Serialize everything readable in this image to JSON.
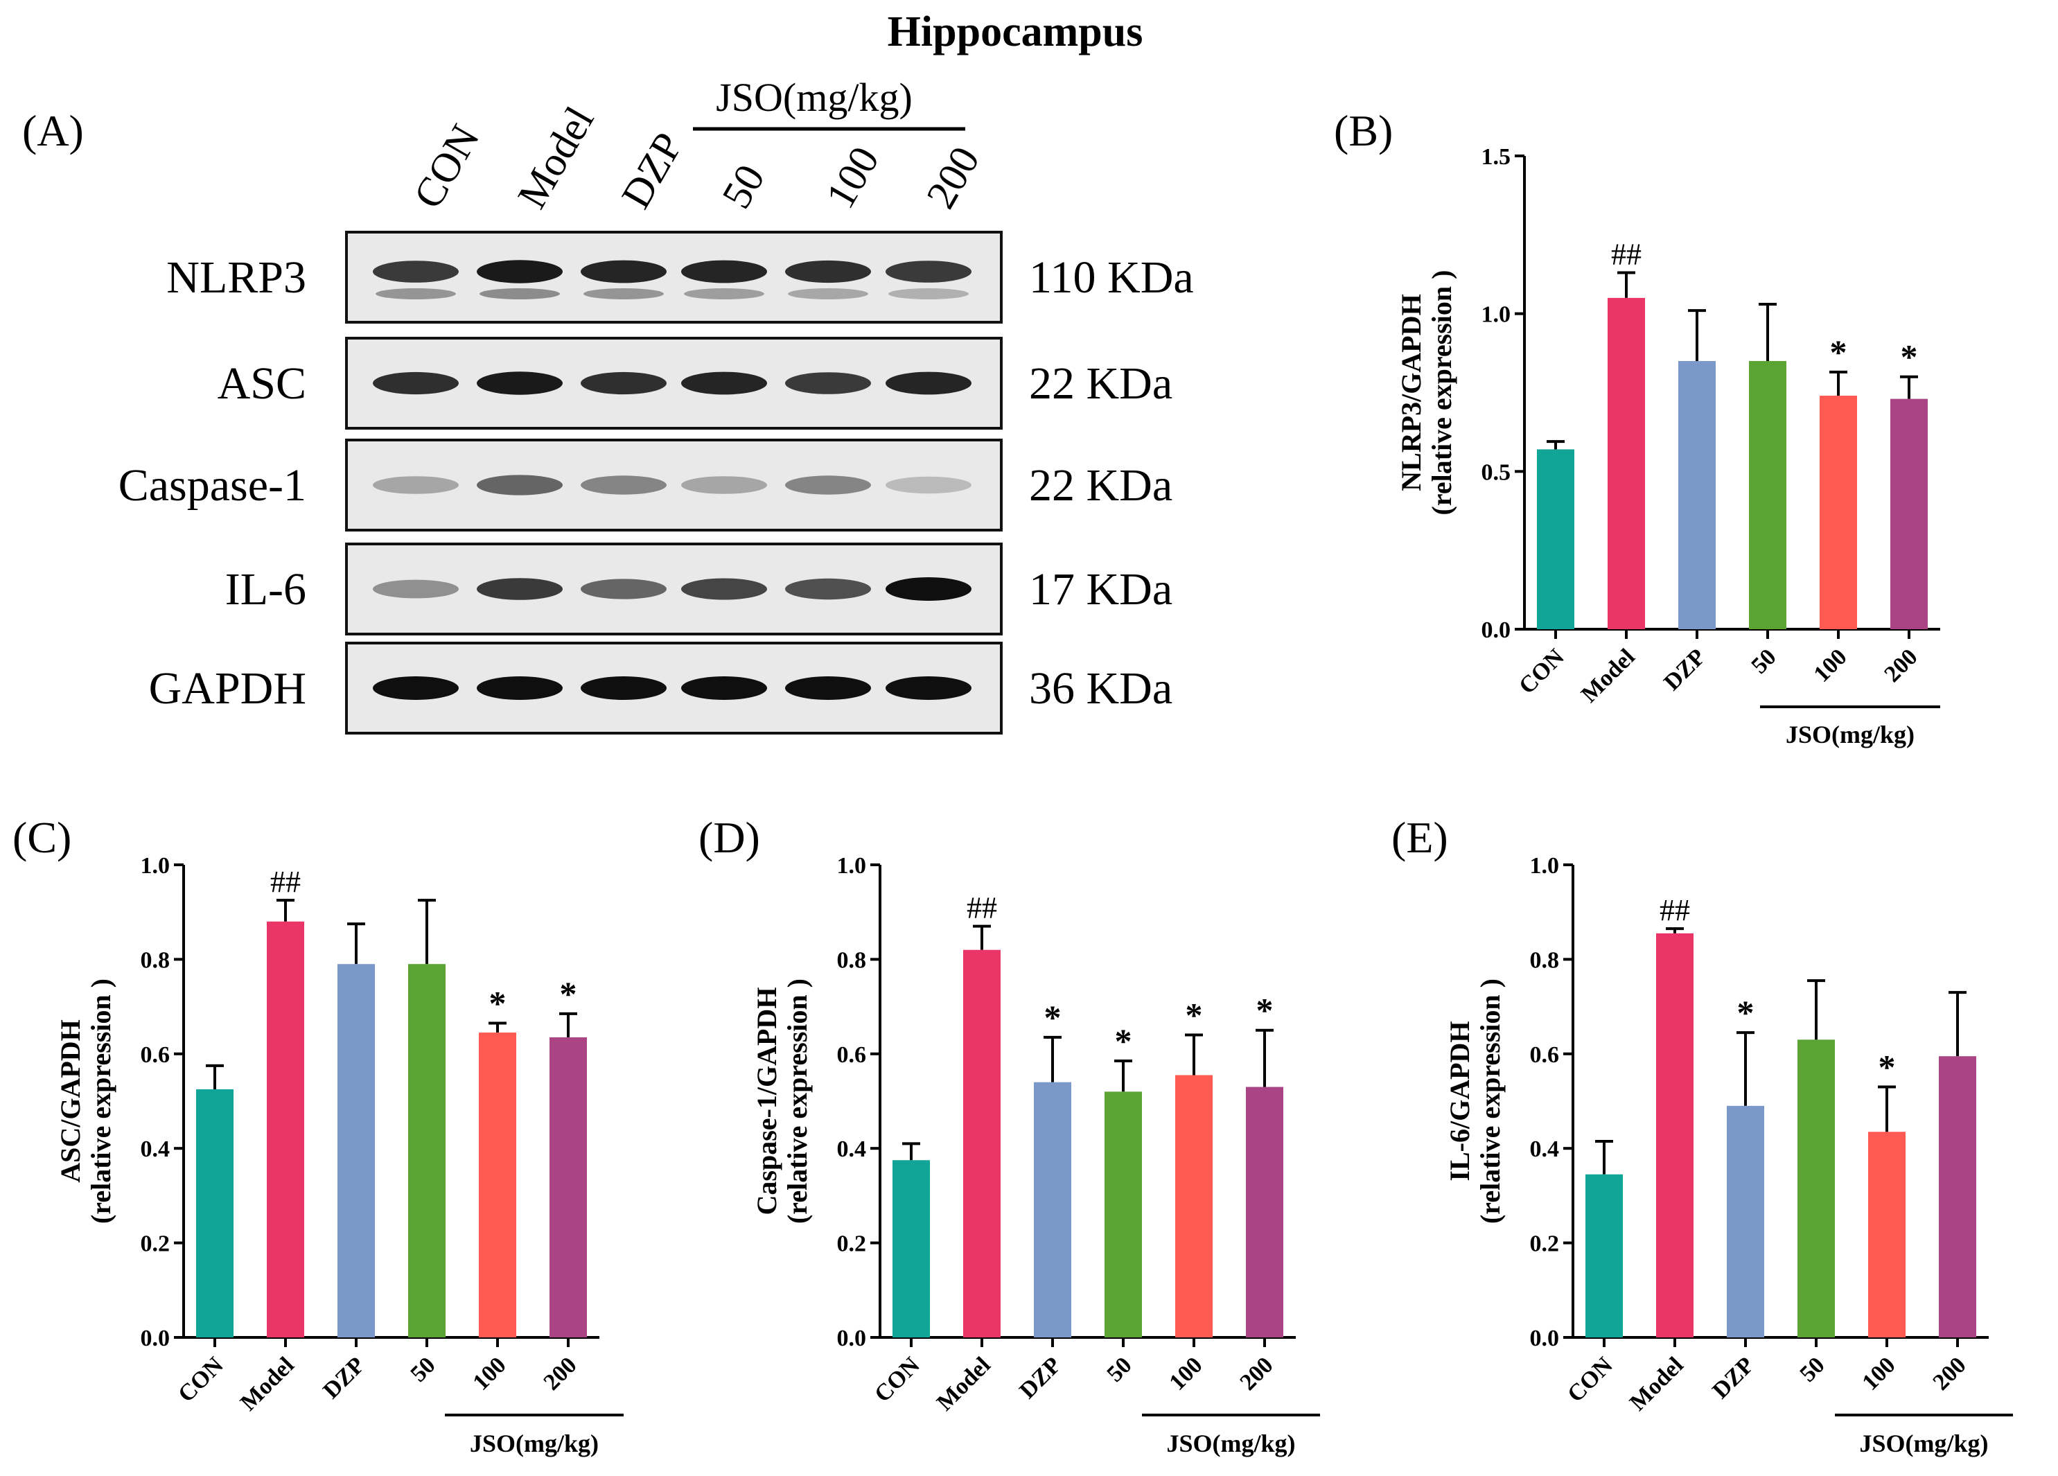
{
  "figure_title": "Hippocampus",
  "panel_a": {
    "label": "(A)",
    "lanes": [
      "CON",
      "Model",
      "DZP",
      "50",
      "100",
      "200"
    ],
    "group_label": "JSO(mg/kg)",
    "blots": [
      {
        "protein": "NLRP3",
        "size": "110 KDa",
        "intensity": [
          0.8,
          0.95,
          0.9,
          0.9,
          0.85,
          0.8
        ],
        "lower_band": [
          0.45,
          0.5,
          0.45,
          0.4,
          0.35,
          0.3
        ]
      },
      {
        "protein": "ASC",
        "size": "22 KDa",
        "intensity": [
          0.85,
          0.95,
          0.85,
          0.9,
          0.8,
          0.9
        ],
        "lower_band": [
          0,
          0,
          0,
          0,
          0,
          0
        ]
      },
      {
        "protein": "Caspase-1",
        "size": "22 KDa",
        "intensity": [
          0.3,
          0.6,
          0.45,
          0.3,
          0.45,
          0.2
        ],
        "lower_band": [
          0,
          0,
          0,
          0,
          0,
          0
        ]
      },
      {
        "protein": "IL-6",
        "size": "17 KDa",
        "intensity": [
          0.4,
          0.8,
          0.6,
          0.75,
          0.7,
          1.0
        ],
        "lower_band": [
          0,
          0,
          0,
          0,
          0,
          0
        ]
      },
      {
        "protein": "GAPDH",
        "size": "36 KDa",
        "intensity": [
          1.0,
          1.0,
          1.0,
          1.0,
          1.0,
          1.0
        ],
        "lower_band": [
          0,
          0,
          0,
          0,
          0,
          0
        ]
      }
    ]
  },
  "bar_colors": [
    "#10a596",
    "#e93666",
    "#7b98cb",
    "#5ba332",
    "#ff5a52",
    "#aa4485"
  ],
  "chart_data": [
    {
      "panel": "(B)",
      "type": "bar",
      "categories": [
        "CON",
        "Model",
        "DZP",
        "50",
        "100",
        "200"
      ],
      "values": [
        0.57,
        1.05,
        0.85,
        0.85,
        0.74,
        0.73
      ],
      "errors": [
        0.025,
        0.08,
        0.16,
        0.18,
        0.075,
        0.07
      ],
      "sig": [
        "",
        "##",
        "",
        "",
        "*",
        "*"
      ],
      "ylabel": "NLRP3/GAPDH",
      "ylabel2": "(relative expression )",
      "ylim": [
        0,
        1.5
      ],
      "yticks": [
        "0.0",
        "0.5",
        "1.0",
        "1.5"
      ],
      "group_label": "JSO(mg/kg)"
    },
    {
      "panel": "(C)",
      "type": "bar",
      "categories": [
        "CON",
        "Model",
        "DZP",
        "50",
        "100",
        "200"
      ],
      "values": [
        0.525,
        0.88,
        0.79,
        0.79,
        0.645,
        0.635
      ],
      "errors": [
        0.05,
        0.045,
        0.085,
        0.135,
        0.02,
        0.05
      ],
      "sig": [
        "",
        "##",
        "",
        "",
        "*",
        "*"
      ],
      "ylabel": "ASC/GAPDH",
      "ylabel2": "(relative expression )",
      "ylim": [
        0,
        1.0
      ],
      "yticks": [
        "0.0",
        "0.2",
        "0.4",
        "0.6",
        "0.8",
        "1.0"
      ],
      "group_label": "JSO(mg/kg)"
    },
    {
      "panel": "(D)",
      "type": "bar",
      "categories": [
        "CON",
        "Model",
        "DZP",
        "50",
        "100",
        "200"
      ],
      "values": [
        0.375,
        0.82,
        0.54,
        0.52,
        0.555,
        0.53
      ],
      "errors": [
        0.035,
        0.05,
        0.095,
        0.065,
        0.085,
        0.12
      ],
      "sig": [
        "",
        "##",
        "*",
        "*",
        "*",
        "*"
      ],
      "ylabel": "Caspase-1/GAPDH",
      "ylabel2": "(relative expression )",
      "ylim": [
        0,
        1.0
      ],
      "yticks": [
        "0.0",
        "0.2",
        "0.4",
        "0.6",
        "0.8",
        "1.0"
      ],
      "group_label": "JSO(mg/kg)"
    },
    {
      "panel": "(E)",
      "type": "bar",
      "categories": [
        "CON",
        "Model",
        "DZP",
        "50",
        "100",
        "200"
      ],
      "values": [
        0.345,
        0.855,
        0.49,
        0.63,
        0.435,
        0.595
      ],
      "errors": [
        0.07,
        0.01,
        0.155,
        0.125,
        0.095,
        0.135
      ],
      "sig": [
        "",
        "##",
        "*",
        "",
        "*",
        ""
      ],
      "ylabel": "IL-6/GAPDH",
      "ylabel2": "(relative expression )",
      "ylim": [
        0,
        1.0
      ],
      "yticks": [
        "0.0",
        "0.2",
        "0.4",
        "0.6",
        "0.8",
        "1.0"
      ],
      "group_label": "JSO(mg/kg)"
    }
  ]
}
